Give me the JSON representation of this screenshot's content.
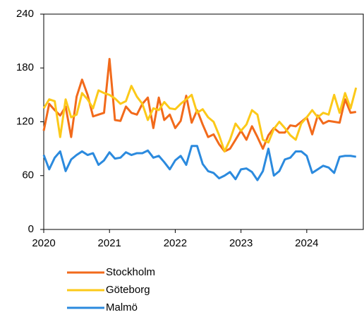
{
  "chart_data": {
    "type": "line",
    "x": [
      2020,
      2020.083,
      2020.167,
      2020.25,
      2020.333,
      2020.417,
      2020.5,
      2020.583,
      2020.667,
      2020.75,
      2020.833,
      2020.917,
      2021,
      2021.083,
      2021.167,
      2021.25,
      2021.333,
      2021.417,
      2021.5,
      2021.583,
      2021.667,
      2021.75,
      2021.833,
      2021.917,
      2022,
      2022.083,
      2022.167,
      2022.25,
      2022.333,
      2022.417,
      2022.5,
      2022.583,
      2022.667,
      2022.75,
      2022.833,
      2022.917,
      2023,
      2023.083,
      2023.167,
      2023.25,
      2023.333,
      2023.417,
      2023.5,
      2023.583,
      2023.667,
      2023.75,
      2023.833,
      2023.917,
      2024,
      2024.083,
      2024.167,
      2024.25,
      2024.333,
      2024.417,
      2024.5,
      2024.583,
      2024.667,
      2024.75
    ],
    "series": [
      {
        "name": "Stockholm",
        "color": "#f26a1b",
        "values": [
          110,
          140,
          133,
          127,
          137,
          103,
          148,
          167,
          150,
          126,
          128,
          130,
          190,
          122,
          121,
          137,
          130,
          128,
          140,
          147,
          113,
          147,
          122,
          128,
          113,
          121,
          149,
          119,
          133,
          117,
          103,
          106,
          95,
          87,
          90,
          100,
          110,
          100,
          115,
          103,
          90,
          105,
          113,
          108,
          108,
          116,
          115,
          120,
          125,
          106,
          127,
          118,
          121,
          120,
          119,
          145,
          130,
          131
        ]
      },
      {
        "name": "Göteborg",
        "color": "#fcc919",
        "values": [
          135,
          145,
          143,
          103,
          145,
          125,
          128,
          152,
          145,
          135,
          155,
          152,
          150,
          146,
          140,
          143,
          160,
          148,
          140,
          122,
          135,
          133,
          142,
          135,
          134,
          140,
          145,
          150,
          130,
          134,
          125,
          120,
          105,
          87,
          100,
          118,
          110,
          117,
          133,
          128,
          100,
          97,
          112,
          120,
          113,
          105,
          100,
          118,
          125,
          133,
          125,
          130,
          128,
          150,
          130,
          152,
          135,
          158
        ]
      },
      {
        "name": "Malmö",
        "color": "#2b8ade",
        "values": [
          83,
          67,
          80,
          87,
          65,
          78,
          83,
          87,
          83,
          85,
          72,
          77,
          86,
          79,
          80,
          86,
          83,
          85,
          85,
          88,
          80,
          82,
          75,
          67,
          77,
          82,
          72,
          93,
          93,
          73,
          65,
          63,
          57,
          60,
          64,
          56,
          67,
          68,
          64,
          55,
          65,
          90,
          60,
          65,
          78,
          80,
          87,
          87,
          82,
          63,
          67,
          71,
          69,
          63,
          81,
          82,
          82,
          81
        ]
      }
    ],
    "xlim": [
      2020,
      2024.86
    ],
    "xticks": [
      2020,
      2021,
      2022,
      2023,
      2024
    ],
    "ylim": [
      0,
      240
    ],
    "yticks": [
      0,
      60,
      120,
      180,
      240
    ]
  }
}
